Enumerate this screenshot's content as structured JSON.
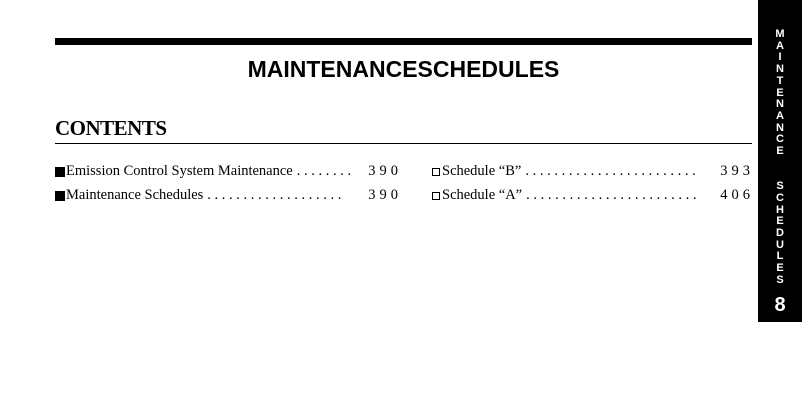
{
  "header": {
    "title": "MAINTENANCESCHEDULES"
  },
  "contents": {
    "heading": "CONTENTS",
    "left": [
      {
        "label": "Emission Control System Maintenance",
        "dots": ". . . . . . . .",
        "page": "390",
        "bullet": "filled-square"
      },
      {
        "label": "Maintenance Schedules",
        "dots": ". . . . . . . . . . . . . . . . . . .",
        "page": "390",
        "bullet": "filled-square"
      }
    ],
    "right": [
      {
        "label": "Schedule “B”",
        "dots": ". . . . . . . . . . . . . . . . . . . . . . . .",
        "page": "393",
        "bullet": "hollow-square"
      },
      {
        "label": "Schedule “A”",
        "dots": ". . . . . . . . . . . . . . . . . . . . . . . .",
        "page": "406",
        "bullet": "hollow-square"
      }
    ]
  },
  "side_tab": {
    "section": "MAINTENANCE SCHEDULES",
    "number": "8"
  }
}
